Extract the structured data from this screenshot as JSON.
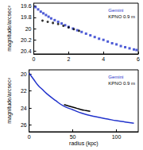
{
  "chart_data": [
    {
      "type": "scatter",
      "ylabel": "magnitude/arcsec²",
      "xlim": [
        0,
        6
      ],
      "xticks": [
        0,
        2,
        4,
        6
      ],
      "ylim": [
        20.45,
        19.55
      ],
      "yticks": [
        19.6,
        19.8,
        20,
        20.2,
        20.4
      ],
      "grid": false,
      "legend": "upper right",
      "series": [
        {
          "name": "Gemini",
          "color": "#2233cc",
          "marker": "square",
          "x": [
            0.1,
            0.25,
            0.4,
            0.55,
            0.7,
            0.85,
            1.0,
            1.2,
            1.4,
            1.6,
            1.8,
            2.0,
            2.25,
            2.5,
            2.75,
            3.0,
            3.25,
            3.5,
            3.75,
            4.0,
            4.25,
            4.5,
            4.75,
            5.0,
            5.25,
            5.5,
            5.75,
            5.9
          ],
          "values": [
            19.62,
            19.66,
            19.7,
            19.73,
            19.76,
            19.79,
            19.82,
            19.85,
            19.88,
            19.91,
            19.94,
            19.97,
            20.0,
            20.03,
            20.06,
            20.09,
            20.12,
            20.15,
            20.18,
            20.2,
            20.23,
            20.26,
            20.28,
            20.31,
            20.33,
            20.35,
            20.37,
            20.38
          ]
        },
        {
          "name": "KPNO 0.9 m",
          "color": "#000000",
          "marker": "circle",
          "x": [
            0.5,
            0.8,
            1.1,
            1.4,
            1.7,
            2.0,
            2.3,
            2.6
          ],
          "values": [
            19.86,
            19.88,
            19.9,
            19.92,
            19.95,
            19.98,
            20.01,
            20.04
          ]
        }
      ]
    },
    {
      "type": "line",
      "xlabel": "radius (kpc)",
      "ylabel": "magnitude/arcsec²",
      "xlim": [
        0,
        125
      ],
      "xticks": [
        0,
        50,
        100
      ],
      "ylim": [
        26.8,
        19.5
      ],
      "yticks": [
        20,
        22,
        24,
        26
      ],
      "grid": false,
      "legend": "upper right",
      "series": [
        {
          "name": "Gemini",
          "color": "#2233cc",
          "x": [
            0,
            5,
            10,
            15,
            20,
            30,
            40,
            50,
            60,
            75,
            90,
            100,
            110,
            120
          ],
          "values": [
            19.9,
            20.6,
            21.3,
            21.8,
            22.3,
            23.1,
            23.8,
            24.2,
            24.6,
            25.0,
            25.3,
            25.5,
            25.65,
            25.8
          ]
        },
        {
          "name": "KPNO 0.9 m",
          "color": "#000000",
          "x": [
            40,
            45,
            50,
            55,
            60,
            65,
            70
          ],
          "values": [
            23.6,
            23.75,
            23.9,
            24.05,
            24.2,
            24.3,
            24.4
          ]
        }
      ]
    }
  ]
}
